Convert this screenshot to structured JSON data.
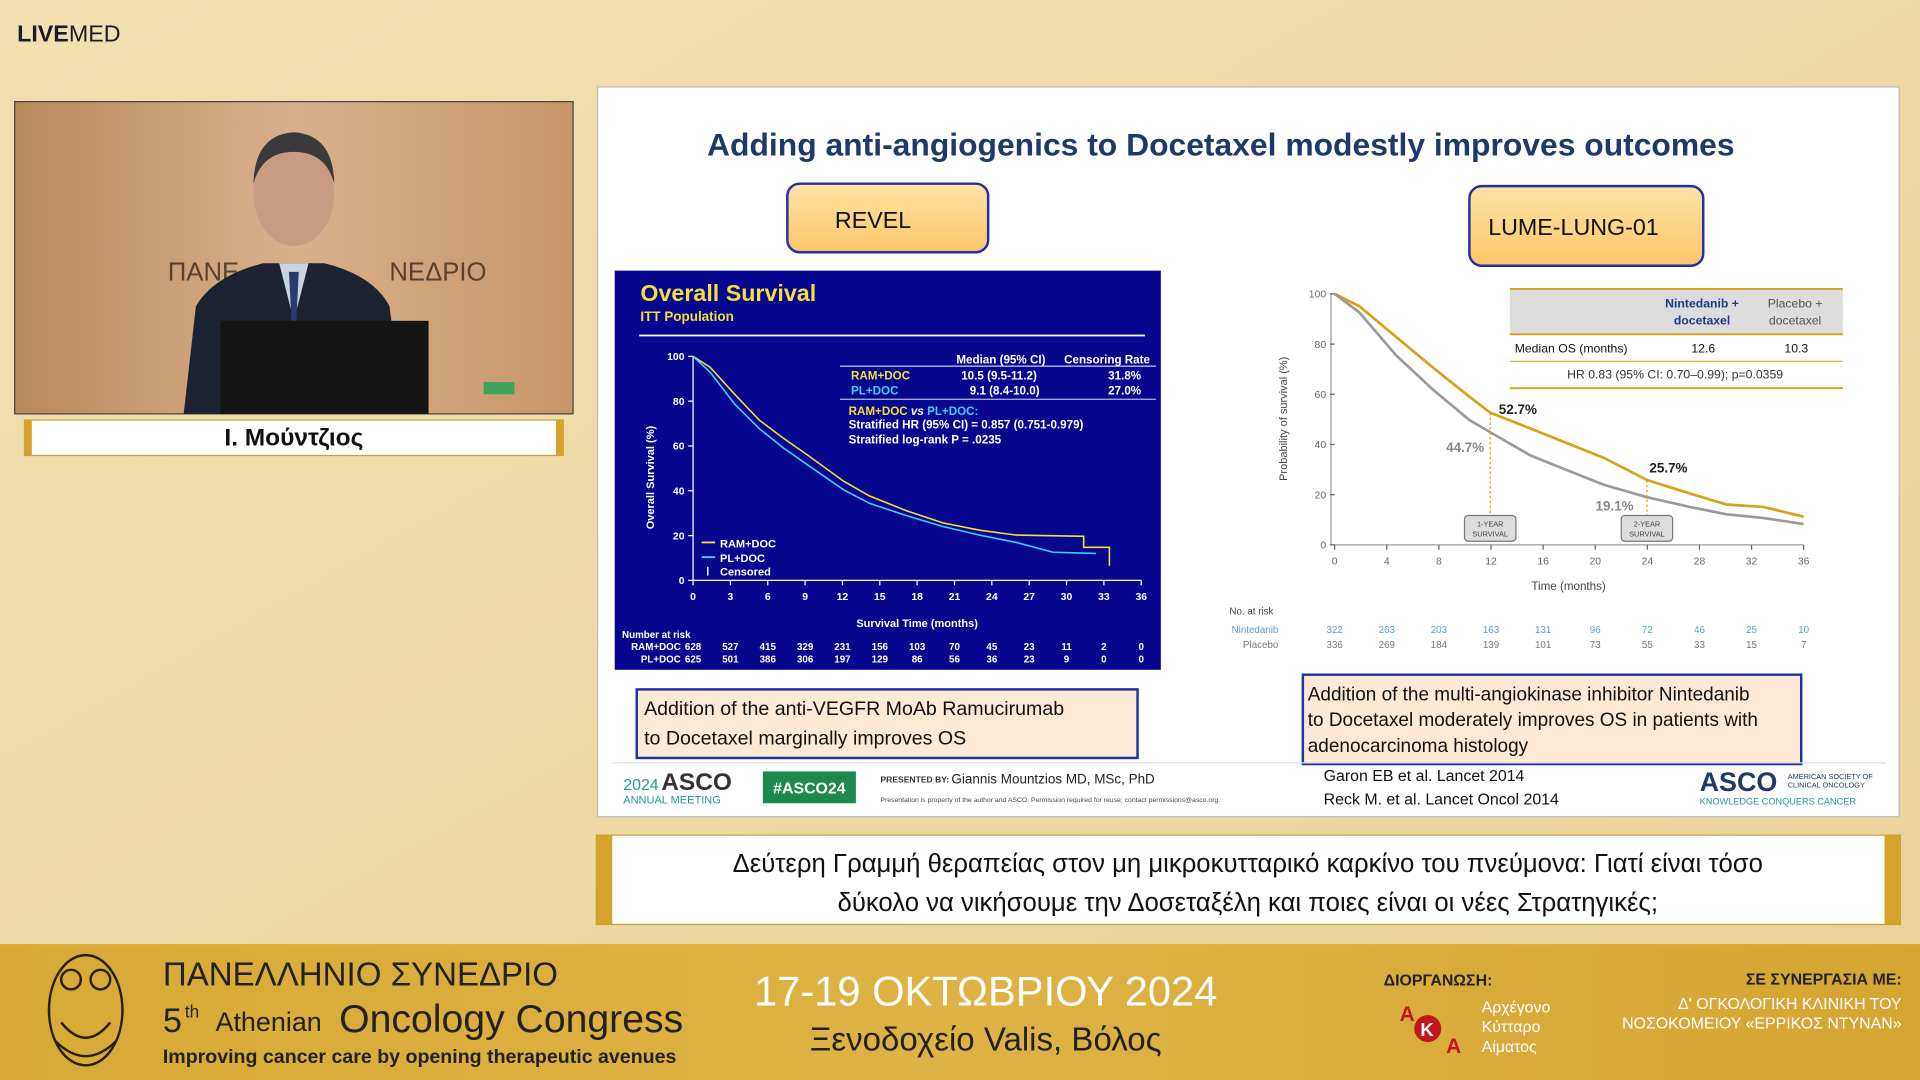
{
  "brand": {
    "bold": "LIVE",
    "light": "MED"
  },
  "speaker": {
    "name": "Ι. Μούντζιος",
    "backdrop": [
      "ΠΑΝΕ",
      "ΝΕΔΡΙΟ"
    ]
  },
  "slide": {
    "title": "Adding  anti-angiogenics to Docetaxel modestly improves outcomes",
    "trials": [
      "REVEL",
      "LUME-LUNG-01"
    ],
    "revel_chart": {
      "title": "Overall Survival",
      "subtitle": "ITT Population",
      "y_label": "Overall Survival (%)",
      "x_label": "Survival Time (months)",
      "yticks": [
        0,
        20,
        40,
        60,
        80,
        100
      ],
      "xticks": [
        0,
        3,
        6,
        9,
        12,
        15,
        18,
        21,
        24,
        27,
        30,
        33,
        36
      ],
      "table_header": [
        "Median (95% CI)",
        "Censoring Rate"
      ],
      "table_rows": [
        [
          "RAM+DOC",
          "10.5 (9.5-11.2)",
          "31.8%"
        ],
        [
          "PL+DOC",
          "9.1 (8.4-10.0)",
          "27.0%"
        ]
      ],
      "comparison": [
        "RAM+DOC",
        " vs ",
        "PL+DOC:"
      ],
      "hr": "Stratified HR (95% CI) = 0.857 (0.751-0.979)",
      "logrank": "Stratified log-rank P = .0235",
      "legend": [
        "RAM+DOC",
        "PL+DOC",
        "Censored"
      ],
      "at_risk_title": "Number at risk",
      "at_risk": [
        {
          "name": "RAM+DOC",
          "values": [
            628,
            527,
            415,
            329,
            231,
            156,
            103,
            70,
            45,
            23,
            11,
            2,
            0
          ]
        },
        {
          "name": "PL+DOC",
          "values": [
            625,
            501,
            386,
            306,
            197,
            129,
            86,
            56,
            36,
            23,
            9,
            0,
            0
          ]
        }
      ]
    },
    "lume_chart": {
      "y_label": "Probability of survival (%)",
      "x_label": "Time (months)",
      "yticks": [
        0,
        20,
        40,
        60,
        80,
        100
      ],
      "xticks": [
        0,
        4,
        8,
        12,
        16,
        20,
        24,
        28,
        32,
        36
      ],
      "table_header": [
        [
          "Nintedanib +",
          "docetaxel"
        ],
        [
          "Placebo +",
          "docetaxel"
        ]
      ],
      "median_label": "Median OS (months)",
      "median": [
        12.6,
        10.3
      ],
      "hr": "HR 0.83 (95% CI: 0.70–0.99); p=0.0359",
      "annotations": [
        "52.7%",
        "44.7%",
        "25.7%",
        "19.1%"
      ],
      "markers": [
        [
          "1-YEAR",
          "SURVIVAL"
        ],
        [
          "2-YEAR",
          "SURVIVAL"
        ]
      ],
      "at_risk_title": "No. at risk",
      "at_risk": [
        {
          "name": "Nintedanib",
          "values": [
            322,
            263,
            203,
            163,
            131,
            96,
            72,
            46,
            25,
            10
          ]
        },
        {
          "name": "Placebo",
          "values": [
            336,
            269,
            184,
            139,
            101,
            73,
            55,
            33,
            15,
            7
          ]
        }
      ]
    },
    "captions": [
      [
        "Addition of the anti-VEGFR MoAb Ramucirumab",
        "to Docetaxel marginally improves OS"
      ],
      [
        "Addition of the multi-angiokinase inhibitor Nintedanib",
        "to Docetaxel moderately improves OS in patients with",
        "adenocarcinoma histology"
      ]
    ],
    "footer": {
      "meeting_year": "2024",
      "meeting": "ASCO",
      "meeting_sub": "ANNUAL MEETING",
      "hashtag": "#ASCO24",
      "presented_by": "PRESENTED BY:",
      "presenter": "Giannis Mountzios MD, MSc, PhD",
      "disclaimer": "Presentation is property of the author and ASCO. Permission required for reuse; contact permissions@asco.org.",
      "refs": [
        "Garon EB et al. Lancet 2014",
        "Reck M. et al. Lancet Oncol 2014"
      ],
      "asco": "ASCO",
      "asco_sub": [
        "AMERICAN SOCIETY OF",
        "CLINICAL ONCOLOGY"
      ],
      "asco_tag": "KNOWLEDGE CONQUERS CANCER"
    }
  },
  "subtitle": [
    "Δεύτερη Γραμμή θεραπείας στον μη μικροκυτταρικό καρκίνο του πνεύμονα: Γιατί είναι τόσο",
    "δύκολο να νικήσουμε την Δοσεταξέλη και ποιες είναι οι νέες Στρατηγικές;"
  ],
  "banner": {
    "congress": "ΠΑΝΕΛΛΗΝΙΟ ΣΥΝΕΔΡΙΟ",
    "edition": "5",
    "edition_suffix": "th",
    "athenian": "Athenian",
    "oncology": "Oncology Congress",
    "tagline": "Improving cancer care by opening therapeutic avenues",
    "dates": "17-19 ΟΚΤΩΒΡΙΟΥ 2024",
    "venue": "Ξενοδοχείο Valis, Βόλος",
    "organizer_label": "ΔΙΟΡΓΑΝΩΣΗ:",
    "organizer_logo": [
      "Α",
      "Κ",
      "Α"
    ],
    "organizer": [
      "Αρχέγονο",
      "Κύτταρο",
      "Αίματος"
    ],
    "partner_label": "ΣΕ ΣΥΝΕΡΓΑΣΙΑ ΜΕ:",
    "partner": [
      "Δ' ΟΓΚΟΛΟΓΙΚΗ ΚΛΙΝΙΚΗ ΤΟΥ",
      "ΝΟΣΟΚΟΜΕΙΟΥ «ΕΡΡΙΚΟΣ ΝΤΥΝΑΝ»"
    ]
  }
}
